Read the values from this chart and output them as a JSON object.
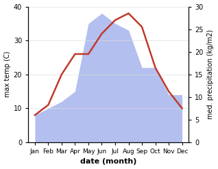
{
  "months": [
    "Jan",
    "Feb",
    "Mar",
    "Apr",
    "May",
    "Jun",
    "Jul",
    "Aug",
    "Sep",
    "Oct",
    "Nov",
    "Dec"
  ],
  "x": [
    0,
    1,
    2,
    3,
    4,
    5,
    6,
    7,
    8,
    9,
    10,
    11
  ],
  "temp": [
    8,
    11,
    20,
    26,
    26,
    32,
    36,
    38,
    34,
    22,
    15,
    10
  ],
  "precip_left_scale": [
    8,
    10,
    12,
    15,
    35,
    38,
    35,
    33,
    22,
    22,
    14,
    14
  ],
  "temp_ylim": [
    0,
    40
  ],
  "precip_ylim": [
    0,
    30
  ],
  "left_ylabel": "max temp (C)",
  "right_ylabel": "med. precipitation (kg/m2)",
  "xlabel": "date (month)",
  "temp_color": "#c0392b",
  "precip_fill_color": "#b3bfee",
  "temp_linewidth": 1.8,
  "xlabel_fontsize": 8,
  "ylabel_fontsize": 7,
  "tick_fontsize": 7,
  "xtick_fontsize": 6.5,
  "left_yticks": [
    0,
    10,
    20,
    30,
    40
  ],
  "right_yticks": [
    0,
    5,
    10,
    15,
    20,
    25,
    30
  ],
  "grid_color": "#dddddd",
  "background_color": "#ffffff"
}
